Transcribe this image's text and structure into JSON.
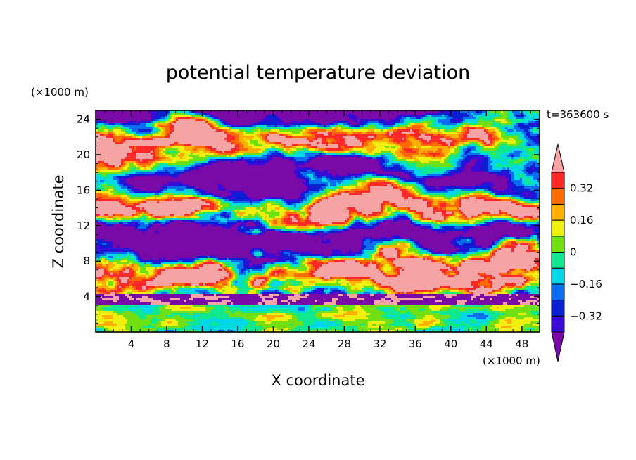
{
  "chart_data": {
    "type": "heatmap",
    "title": "potential temperature deviation",
    "xlabel": "X coordinate",
    "ylabel": "Z coordinate",
    "x_unit": "(×1000 m)",
    "y_unit": "(×1000 m)",
    "time_label": "t=363600 s",
    "xlim": [
      0,
      50
    ],
    "ylim": [
      0,
      25
    ],
    "x_ticks": [
      4,
      8,
      12,
      16,
      20,
      24,
      28,
      32,
      36,
      40,
      44,
      48
    ],
    "y_ticks": [
      4,
      8,
      12,
      16,
      20,
      24
    ],
    "colorbar": {
      "levels": [
        -0.4,
        -0.32,
        -0.24,
        -0.16,
        -0.08,
        0,
        0.08,
        0.16,
        0.24,
        0.32,
        0.4
      ],
      "tick_labels": [
        "0.32",
        "0.16",
        "0",
        "−0.16",
        "−0.32"
      ],
      "tick_values": [
        0.32,
        0.16,
        0,
        -0.16,
        -0.32
      ],
      "colors": [
        "#7a0aa8",
        "#3a0ad8",
        "#0a1fd2",
        "#0a6cf0",
        "#00d8e8",
        "#10e890",
        "#70e010",
        "#f0f010",
        "#ffb000",
        "#ff6a00",
        "#ff2828",
        "#f5a3a3"
      ],
      "extend": "both"
    }
  }
}
